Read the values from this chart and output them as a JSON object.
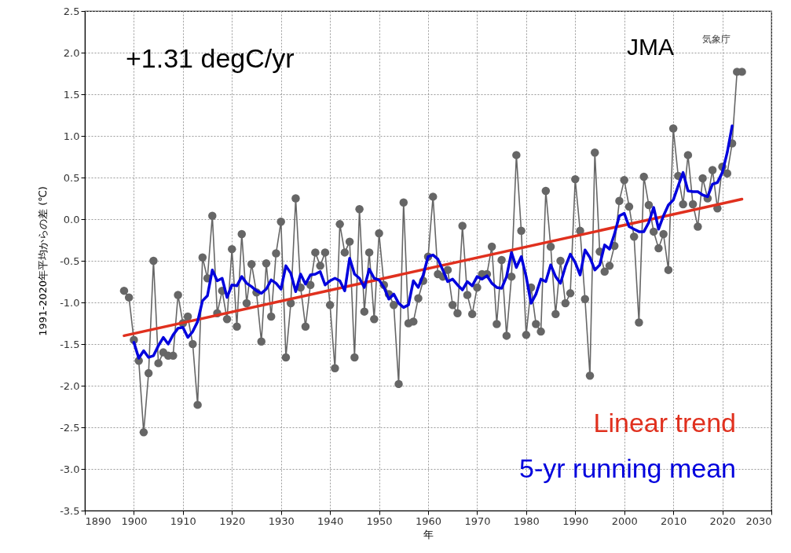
{
  "chart_data": {
    "type": "line",
    "xlabel": "年",
    "ylabel": "1991-2020年平均からの差 (℃)",
    "annotations": [
      "+1.31 degC/yr",
      "JMA",
      "気象庁"
    ],
    "xlim": [
      1890,
      2030
    ],
    "xticks": [
      1890,
      1900,
      1910,
      1920,
      1930,
      1940,
      1950,
      1960,
      1970,
      1980,
      1990,
      2000,
      2010,
      2020,
      2030
    ],
    "ylim": [
      -3.5,
      2.5
    ],
    "yticks": [
      -3.5,
      {
        "value": -3,
        "label": "-3.0"
      },
      -2.5,
      {
        "value": -2,
        "label": "-2.0"
      },
      -1.5,
      {
        "value": -1,
        "label": "-1.0"
      },
      -0.5,
      {
        "value": 0,
        "label": "0.0"
      },
      0.5,
      {
        "value": 1,
        "label": "1.0"
      },
      1.5,
      {
        "value": 2,
        "label": "2.0"
      },
      2.5
    ],
    "grid": true,
    "legend": "bottom right",
    "series": [
      {
        "color": "#666666",
        "marker": "circle",
        "x": [
          1898,
          1899,
          1900,
          1901,
          1902,
          1903,
          1904,
          1905,
          1906,
          1907,
          1908,
          1909,
          1910,
          1911,
          1912,
          1913,
          1914,
          1915,
          1916,
          1917,
          1918,
          1919,
          1920,
          1921,
          1922,
          1923,
          1924,
          1925,
          1926,
          1927,
          1928,
          1929,
          1930,
          1931,
          1932,
          1933,
          1934,
          1935,
          1936,
          1937,
          1938,
          1939,
          1940,
          1941,
          1942,
          1943,
          1944,
          1945,
          1946,
          1947,
          1948,
          1949,
          1950,
          1951,
          1952,
          1953,
          1954,
          1955,
          1956,
          1957,
          1958,
          1959,
          1960,
          1961,
          1962,
          1963,
          1964,
          1965,
          1966,
          1967,
          1968,
          1969,
          1970,
          1971,
          1972,
          1973,
          1974,
          1975,
          1976,
          1977,
          1978,
          1979,
          1980,
          1981,
          1982,
          1983,
          1984,
          1985,
          1986,
          1987,
          1988,
          1989,
          1990,
          1991,
          1992,
          1993,
          1994,
          1995,
          1996,
          1997,
          1998,
          1999,
          2000,
          2001,
          2002,
          2003,
          2004,
          2005,
          2006,
          2007,
          2008,
          2009,
          2010,
          2011,
          2012,
          2013,
          2014,
          2015,
          2016,
          2017,
          2018,
          2019,
          2020,
          2021,
          2022,
          2023,
          2024
        ],
        "values": [
          -0.86,
          -0.94,
          -1.45,
          -1.7,
          -2.56,
          -1.85,
          -0.5,
          -1.73,
          -1.6,
          -1.64,
          -1.64,
          -0.91,
          -1.25,
          -1.17,
          -1.5,
          -2.23,
          -0.46,
          -0.71,
          0.04,
          -1.13,
          -0.86,
          -1.2,
          -0.36,
          -1.29,
          -0.18,
          -1.01,
          -0.54,
          -0.88,
          -1.47,
          -0.53,
          -1.17,
          -0.41,
          -0.03,
          -1.66,
          -1.01,
          0.25,
          -0.82,
          -1.29,
          -0.79,
          -0.4,
          -0.56,
          -0.4,
          -1.03,
          -1.79,
          -0.06,
          -0.4,
          -0.27,
          -1.66,
          0.12,
          -1.11,
          -0.4,
          -1.2,
          -0.17,
          -0.79,
          -0.9,
          -1.03,
          -1.98,
          0.2,
          -1.25,
          -1.23,
          -0.95,
          -0.74,
          -0.45,
          0.27,
          -0.66,
          -0.69,
          -0.61,
          -1.03,
          -1.13,
          -0.08,
          -0.91,
          -1.14,
          -0.82,
          -0.66,
          -0.66,
          -0.33,
          -1.26,
          -0.49,
          -1.4,
          -0.69,
          0.77,
          -0.14,
          -1.39,
          -0.82,
          -1.26,
          -1.35,
          0.34,
          -0.33,
          -1.14,
          -0.5,
          -1.01,
          -0.89,
          0.48,
          -0.14,
          -0.96,
          -1.88,
          0.8,
          -0.39,
          -0.63,
          -0.56,
          -0.32,
          0.22,
          0.47,
          0.15,
          -0.21,
          -1.24,
          0.51,
          0.17,
          -0.15,
          -0.35,
          -0.18,
          -0.61,
          1.09,
          0.52,
          0.18,
          0.77,
          0.18,
          -0.09,
          0.49,
          0.25,
          0.59,
          0.13,
          0.63,
          0.55,
          0.91,
          1.77,
          1.77
        ]
      },
      {
        "name": "Linear trend",
        "color": "#e0301e",
        "x": [
          1898,
          2024
        ],
        "values": [
          -1.4,
          0.24
        ]
      },
      {
        "name": "5-yr running mean",
        "color": "#0000dd",
        "x": [
          1900,
          1901,
          1902,
          1903,
          1904,
          1905,
          1906,
          1907,
          1908,
          1909,
          1910,
          1911,
          1912,
          1913,
          1914,
          1915,
          1916,
          1917,
          1918,
          1919,
          1920,
          1921,
          1922,
          1923,
          1924,
          1925,
          1926,
          1927,
          1928,
          1929,
          1930,
          1931,
          1932,
          1933,
          1934,
          1935,
          1936,
          1937,
          1938,
          1939,
          1940,
          1941,
          1942,
          1943,
          1944,
          1945,
          1946,
          1947,
          1948,
          1949,
          1950,
          1951,
          1952,
          1953,
          1954,
          1955,
          1956,
          1957,
          1958,
          1959,
          1960,
          1961,
          1962,
          1963,
          1964,
          1965,
          1966,
          1967,
          1968,
          1969,
          1970,
          1971,
          1972,
          1973,
          1974,
          1975,
          1976,
          1977,
          1978,
          1979,
          1980,
          1981,
          1982,
          1983,
          1984,
          1985,
          1986,
          1987,
          1988,
          1989,
          1990,
          1991,
          1992,
          1993,
          1994,
          1995,
          1996,
          1997,
          1998,
          1999,
          2000,
          2001,
          2002,
          2003,
          2004,
          2005,
          2006,
          2007,
          2008,
          2009,
          2010,
          2011,
          2012,
          2013,
          2014,
          2015,
          2016,
          2017,
          2018,
          2019,
          2020,
          2021,
          2022
        ],
        "values": [
          -1.48,
          -1.67,
          -1.58,
          -1.66,
          -1.64,
          -1.52,
          -1.42,
          -1.5,
          -1.39,
          -1.31,
          -1.3,
          -1.42,
          -1.35,
          -1.23,
          -0.98,
          -0.92,
          -0.61,
          -0.74,
          -0.71,
          -0.94,
          -0.79,
          -0.8,
          -0.69,
          -0.77,
          -0.81,
          -0.86,
          -0.89,
          -0.84,
          -0.73,
          -0.77,
          -0.84,
          -0.56,
          -0.65,
          -0.87,
          -0.66,
          -0.78,
          -0.67,
          -0.66,
          -0.63,
          -0.79,
          -0.74,
          -0.71,
          -0.74,
          -0.86,
          -0.47,
          -0.66,
          -0.71,
          -0.82,
          -0.6,
          -0.71,
          -0.73,
          -0.82,
          -0.96,
          -0.9,
          -1.01,
          -1.06,
          -1.03,
          -0.74,
          -0.82,
          -0.67,
          -0.45,
          -0.43,
          -0.48,
          -0.61,
          -0.75,
          -0.72,
          -0.79,
          -0.85,
          -0.75,
          -0.8,
          -0.69,
          -0.72,
          -0.68,
          -0.77,
          -0.82,
          -0.83,
          -0.69,
          -0.4,
          -0.58,
          -0.45,
          -0.69,
          -1.01,
          -0.9,
          -0.72,
          -0.75,
          -0.55,
          -0.69,
          -0.77,
          -0.57,
          -0.42,
          -0.52,
          -0.67,
          -0.37,
          -0.46,
          -0.61,
          -0.55,
          -0.31,
          -0.36,
          -0.18,
          0.04,
          0.07,
          -0.09,
          -0.12,
          -0.15,
          -0.15,
          -0.04,
          0.14,
          -0.12,
          0.04,
          0.17,
          0.23,
          0.4,
          0.56,
          0.34,
          0.33,
          0.33,
          0.29,
          0.27,
          0.42,
          0.44,
          0.56,
          0.8,
          1.12
        ]
      }
    ]
  }
}
